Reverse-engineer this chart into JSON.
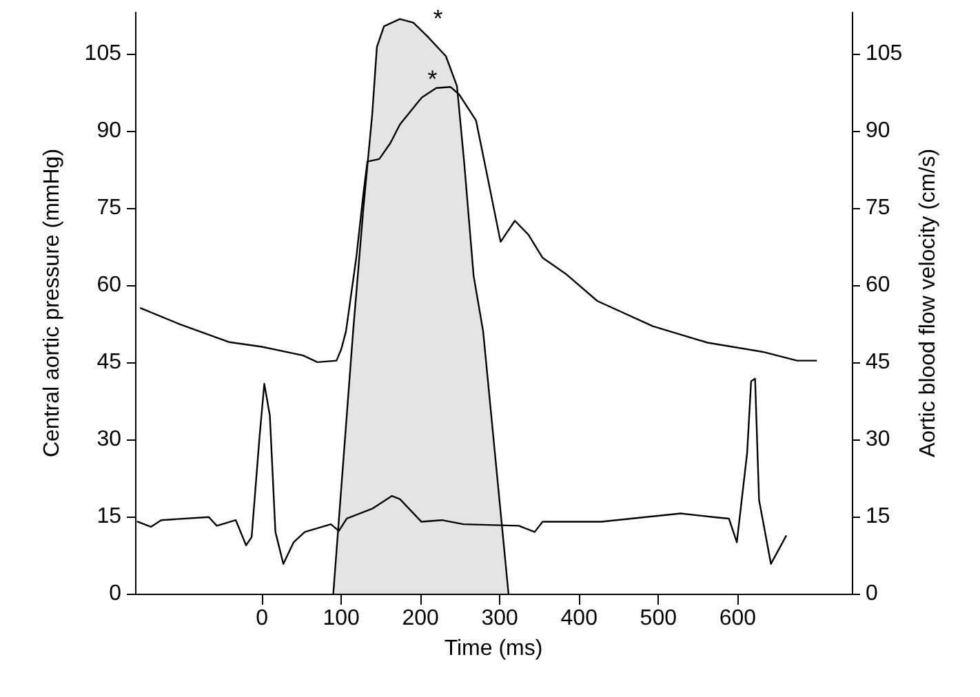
{
  "chart_data": {
    "type": "line",
    "xlabel": "Time (ms)",
    "ylabel": "Central aortic pressure (mmHg)",
    "y2label": "Aortic blood flow velocity (cm/s)",
    "xlim": [
      -160,
      744
    ],
    "xticks": [
      0,
      100,
      200,
      300,
      400,
      500,
      600
    ],
    "ylim": [
      0,
      113
    ],
    "yticks": [
      0,
      15,
      30,
      45,
      60,
      75,
      90,
      105
    ],
    "y2lim": [
      0,
      113
    ],
    "y2ticks": [
      0,
      15,
      30,
      45,
      60,
      75,
      90,
      105
    ],
    "marker": "none",
    "line_style": "solid",
    "grid": false,
    "series": [
      {
        "type": "area",
        "axis": "y2",
        "color": "#000000",
        "x": [
          90,
          115,
          128,
          139,
          145,
          154,
          174,
          191,
          209,
          232,
          246,
          255,
          267,
          279,
          311
        ],
        "values": [
          0,
          51,
          75,
          93,
          106.3,
          110.3,
          111.7,
          111,
          108.3,
          104.5,
          98.7,
          84,
          61.8,
          51,
          0
        ]
      },
      {
        "color": "#000000",
        "x": [
          -153,
          -104,
          -41,
          0,
          52,
          70,
          94,
          100,
          106,
          119,
          128,
          133,
          148,
          162,
          174,
          197,
          202,
          220,
          238,
          249,
          270,
          284,
          301,
          319,
          336,
          354,
          383,
          423,
          493,
          562,
          632,
          675,
          699
        ],
        "values": [
          55.5,
          52.4,
          48.9,
          48,
          46.3,
          45,
          45.3,
          47.5,
          51,
          65.3,
          77.8,
          84,
          84.5,
          87.6,
          91.2,
          95.6,
          96.5,
          98.3,
          98.5,
          97,
          92,
          81.4,
          68.4,
          72.5,
          69.8,
          65.3,
          62.2,
          56.9,
          52,
          48.8,
          47,
          45.3,
          45.3
        ]
      },
      {
        "color": "#000000",
        "x": [
          -157,
          -140,
          -127,
          -67,
          -57,
          -33,
          -20,
          -13,
          -3,
          3,
          10,
          17,
          27,
          40,
          54,
          87,
          97,
          107,
          140,
          164,
          174,
          201,
          227,
          254,
          324,
          344,
          354,
          428,
          528,
          569,
          589,
          599,
          612,
          617,
          622,
          627,
          642,
          661
        ],
        "values": [
          14,
          13,
          14.3,
          14.9,
          13.2,
          14.3,
          9.4,
          11,
          30.5,
          40.8,
          34.6,
          12,
          5.8,
          10,
          12,
          13.5,
          12.2,
          14.6,
          16.6,
          19,
          18.4,
          14,
          14.3,
          13.5,
          13.2,
          12,
          14,
          14,
          15.6,
          14.9,
          14.6,
          10,
          27.4,
          41.3,
          41.8,
          18.2,
          5.8,
          11.2
        ]
      }
    ],
    "annotations": [
      {
        "text": "*",
        "x": 209,
        "y": 108.3
      },
      {
        "text": "*",
        "x": 202,
        "y": 96.5
      }
    ]
  }
}
